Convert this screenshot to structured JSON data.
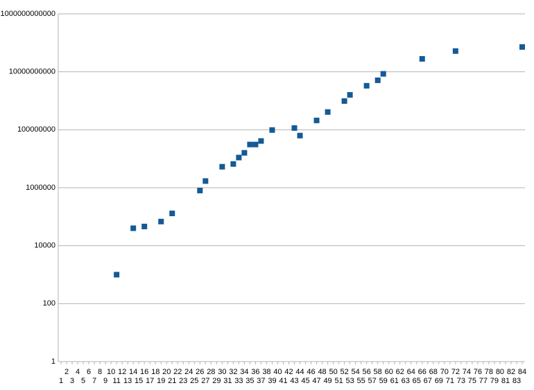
{
  "chart_data": {
    "type": "scatter",
    "log_y": true,
    "grid": true,
    "color": "#135a96",
    "xlim": [
      0.5,
      84.5
    ],
    "xticks": [
      1,
      2,
      3,
      4,
      5,
      6,
      7,
      8,
      9,
      10,
      11,
      12,
      13,
      14,
      15,
      16,
      17,
      18,
      19,
      20,
      21,
      22,
      23,
      24,
      25,
      26,
      27,
      28,
      29,
      30,
      31,
      32,
      33,
      34,
      35,
      36,
      37,
      38,
      39,
      40,
      41,
      42,
      43,
      44,
      45,
      46,
      47,
      48,
      49,
      50,
      51,
      52,
      53,
      54,
      55,
      56,
      57,
      58,
      59,
      60,
      61,
      62,
      63,
      64,
      65,
      66,
      67,
      68,
      69,
      70,
      71,
      72,
      73,
      74,
      75,
      76,
      77,
      78,
      79,
      80,
      81,
      82,
      83,
      84
    ],
    "ylim": [
      1,
      1000000000000
    ],
    "yticks": [
      1,
      100,
      10000,
      1000000,
      100000000,
      10000000000,
      1000000000000
    ],
    "series": [
      {
        "color": "#135a96",
        "x": [
          11,
          14,
          16,
          19,
          21,
          26,
          27,
          30,
          32,
          33,
          34,
          35,
          36,
          37,
          39,
          43,
          44,
          47,
          49,
          52,
          53,
          56,
          58,
          59,
          66,
          72,
          84
        ],
        "values": [
          1000,
          40000,
          46000,
          68000,
          130000,
          800000,
          1700000,
          5300000,
          6600000,
          11000000,
          16000000,
          31000000,
          31000000,
          41000000,
          98000000,
          115000000,
          63000000,
          210000000,
          410000000,
          980000000,
          1600000000,
          3300000000,
          5100000000,
          8500000000,
          28000000000,
          52000000000,
          72000000000
        ]
      }
    ]
  }
}
